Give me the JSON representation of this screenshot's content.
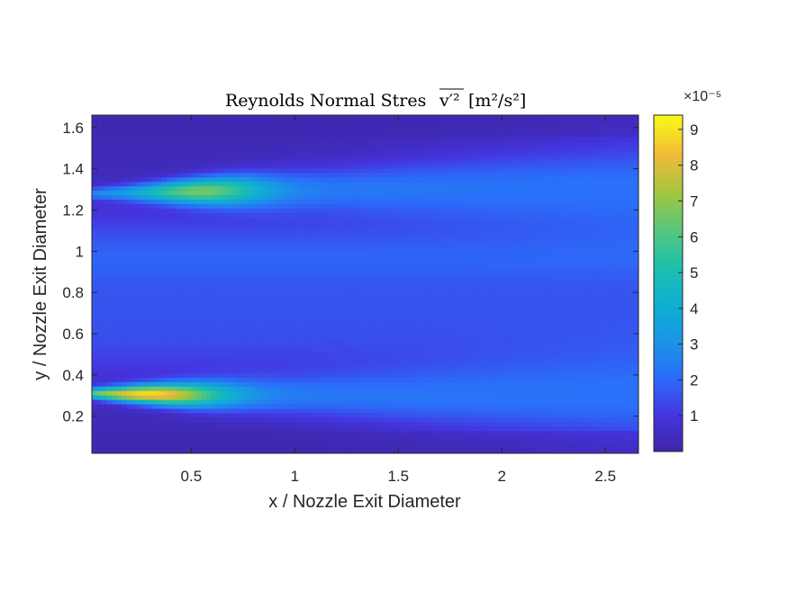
{
  "chart_data": {
    "type": "heatmap",
    "title": "Reynolds Normal Stres",
    "title_symbol": "v′²",
    "title_units": "[m²/s²]",
    "xlabel": "x / Nozzle Exit Diameter",
    "ylabel": "y / Nozzle Exit Diameter",
    "xlim": [
      0.02,
      2.66
    ],
    "ylim": [
      0.02,
      1.66
    ],
    "x_ticks": [
      0.5,
      1,
      1.5,
      2,
      2.5
    ],
    "x_tick_labels": [
      "0.5",
      "1",
      "1.5",
      "2",
      "2.5"
    ],
    "y_ticks": [
      0.2,
      0.4,
      0.6,
      0.8,
      1,
      1.2,
      1.4,
      1.6
    ],
    "y_tick_labels": [
      "0.2",
      "0.4",
      "0.6",
      "0.8",
      "1",
      "1.2",
      "1.4",
      "1.6"
    ],
    "colormap": "parula",
    "colorbar": {
      "scale_label": "×10⁻⁵",
      "ticks": [
        1,
        2,
        3,
        4,
        5,
        6,
        7,
        8,
        9
      ],
      "tick_labels": [
        "1",
        "2",
        "3",
        "4",
        "5",
        "6",
        "7",
        "8",
        "9"
      ],
      "clim": [
        0,
        9.4
      ],
      "unit_multiplier": 1e-05
    },
    "field_description_values": {
      "upper_shear_layer": {
        "y_center": 1.28,
        "peak_x": 0.55,
        "peak_value": 5.8
      },
      "lower_shear_layer": {
        "y_center": 0.31,
        "peak_x": 0.3,
        "peak_value": 8.0
      },
      "core_value": 1.5,
      "background_value": 0.3
    }
  }
}
